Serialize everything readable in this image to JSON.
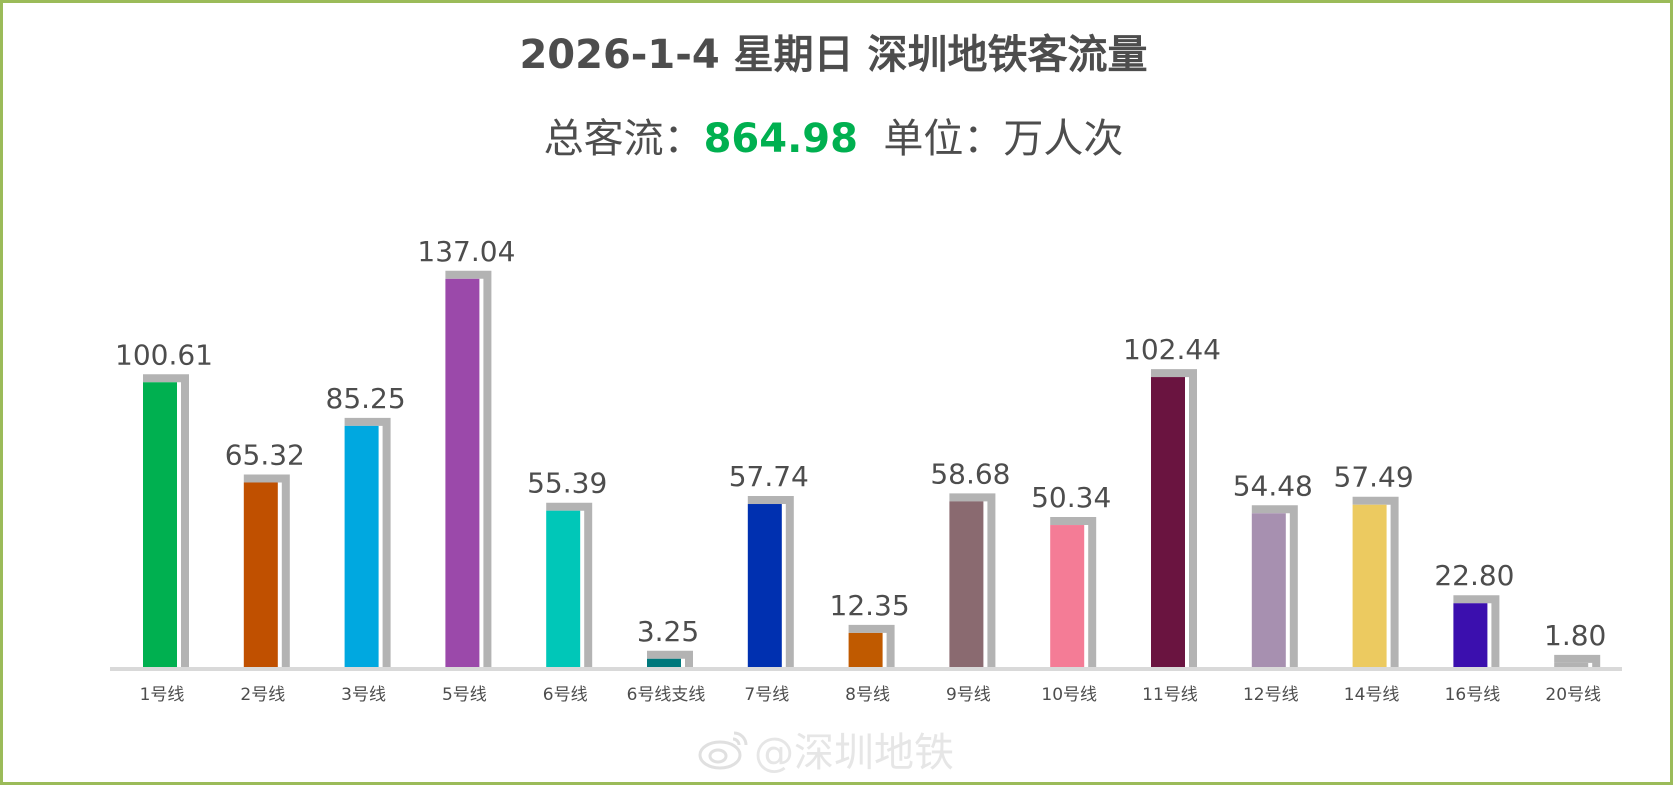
{
  "header": {
    "title": "2026-1-4 星期日  深圳地铁客流量",
    "total_prefix": "总客流：",
    "total_value": "864.98",
    "unit_text": "单位：万人次"
  },
  "watermark": {
    "text": "@深圳地铁",
    "icon": "weibo-icon"
  },
  "colors": {
    "frame": "#9bbb59",
    "total": "#00b050",
    "shadow": "#b3b3b3",
    "axis": "#d9d9d9"
  },
  "chart_data": {
    "type": "bar",
    "categories": [
      "1号线",
      "2号线",
      "3号线",
      "5号线",
      "6号线",
      "6号线支线",
      "7号线",
      "8号线",
      "9号线",
      "10号线",
      "11号线",
      "12号线",
      "14号线",
      "16号线",
      "20号线"
    ],
    "values": [
      100.61,
      65.32,
      85.25,
      137.04,
      55.39,
      3.25,
      57.74,
      12.35,
      58.68,
      50.34,
      102.44,
      54.48,
      57.49,
      22.8,
      1.8
    ],
    "labels": [
      "100.61",
      "65.32",
      "85.25",
      "137.04",
      "55.39",
      "3.25",
      "57.74",
      "12.35",
      "58.68",
      "50.34",
      "102.44",
      "54.48",
      "57.49",
      "22.80",
      "1.80"
    ],
    "colors": [
      "#00b050",
      "#c05000",
      "#00a8e0",
      "#9b49aa",
      "#00c7b8",
      "#00787c",
      "#0030b0",
      "#c05a00",
      "#8a6a70",
      "#f47c96",
      "#6a1440",
      "#a790b0",
      "#ecca60",
      "#3b0fae",
      "#b3b3b3"
    ],
    "ylim": [
      0,
      140
    ],
    "grid": false,
    "legend": "none"
  }
}
